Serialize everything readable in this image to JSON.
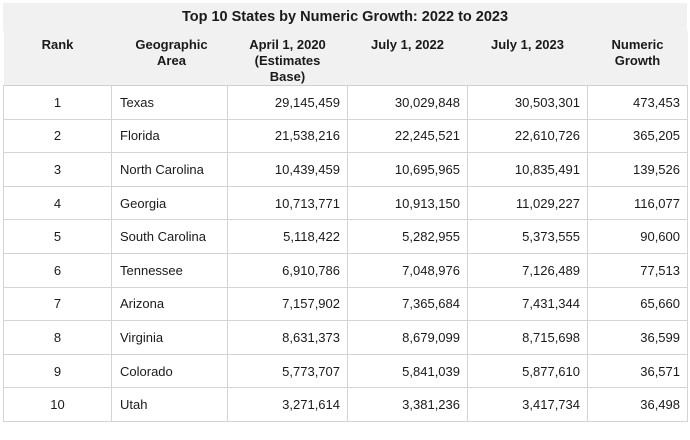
{
  "chart_data": {
    "type": "table",
    "title": "Top 10 States by Numeric Growth: 2022 to 2023",
    "columns": [
      "Rank",
      "Geographic Area",
      "April 1, 2020 (Estimates Base)",
      "July 1, 2022",
      "July 1, 2023",
      "Numeric Growth"
    ],
    "rows": [
      {
        "rank": "1",
        "area": "Texas",
        "apr2020": "29,145,459",
        "jul2022": "30,029,848",
        "jul2023": "30,503,301",
        "growth": "473,453"
      },
      {
        "rank": "2",
        "area": "Florida",
        "apr2020": "21,538,216",
        "jul2022": "22,245,521",
        "jul2023": "22,610,726",
        "growth": "365,205"
      },
      {
        "rank": "3",
        "area": "North Carolina",
        "apr2020": "10,439,459",
        "jul2022": "10,695,965",
        "jul2023": "10,835,491",
        "growth": "139,526"
      },
      {
        "rank": "4",
        "area": "Georgia",
        "apr2020": "10,713,771",
        "jul2022": "10,913,150",
        "jul2023": "11,029,227",
        "growth": "116,077"
      },
      {
        "rank": "5",
        "area": "South Carolina",
        "apr2020": "5,118,422",
        "jul2022": "5,282,955",
        "jul2023": "5,373,555",
        "growth": "90,600"
      },
      {
        "rank": "6",
        "area": "Tennessee",
        "apr2020": "6,910,786",
        "jul2022": "7,048,976",
        "jul2023": "7,126,489",
        "growth": "77,513"
      },
      {
        "rank": "7",
        "area": "Arizona",
        "apr2020": "7,157,902",
        "jul2022": "7,365,684",
        "jul2023": "7,431,344",
        "growth": "65,660"
      },
      {
        "rank": "8",
        "area": "Virginia",
        "apr2020": "8,631,373",
        "jul2022": "8,679,099",
        "jul2023": "8,715,698",
        "growth": "36,599"
      },
      {
        "rank": "9",
        "area": "Colorado",
        "apr2020": "5,773,707",
        "jul2022": "5,841,039",
        "jul2023": "5,877,610",
        "growth": "36,571"
      },
      {
        "rank": "10",
        "area": "Utah",
        "apr2020": "3,271,614",
        "jul2022": "3,381,236",
        "jul2023": "3,417,734",
        "growth": "36,498"
      }
    ]
  },
  "header": {
    "rank": "Rank",
    "area_line1": "Geographic",
    "area_line2": "Area",
    "apr_line1": "April 1, 2020",
    "apr_line2": "(Estimates",
    "apr_line3": "Base)",
    "jul2022": "July 1, 2022",
    "jul2023": "July 1, 2023",
    "growth": "Numeric Growth"
  },
  "colors": {
    "header_bg": "#f1f1f1",
    "grid_line": "#d4d4d4",
    "text": "#1a1a1a"
  }
}
